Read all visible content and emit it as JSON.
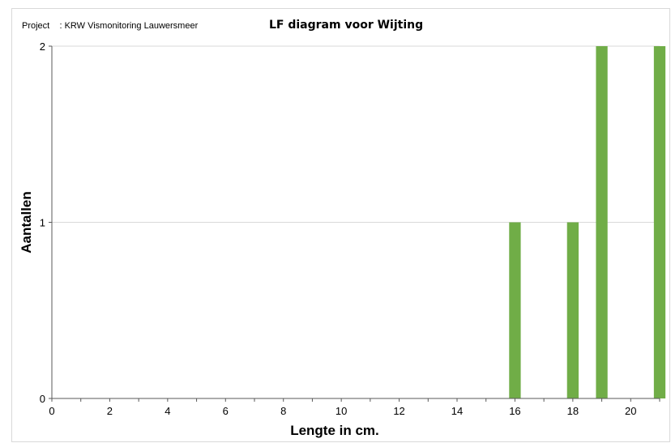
{
  "header": {
    "project": "Project    : KRW Vismonitoring Lauwersmeer",
    "title": "LF diagram voor Wijting"
  },
  "colors": {
    "bar": "#70ad47",
    "gridline": "#d9d9d9",
    "axis": "#595959"
  },
  "chart_data": {
    "type": "bar",
    "title": "LF diagram voor Wijting",
    "xlabel": "Lengte in cm.",
    "ylabel": "Aantallen",
    "xlim": [
      0,
      21
    ],
    "ylim": [
      0,
      2
    ],
    "xticks": [
      0,
      2,
      4,
      6,
      8,
      10,
      12,
      14,
      16,
      18,
      20
    ],
    "yticks": [
      0,
      1,
      2
    ],
    "grid": "horizontal",
    "points": [
      {
        "x": 16,
        "y": 1
      },
      {
        "x": 18,
        "y": 1
      },
      {
        "x": 19,
        "y": 2
      },
      {
        "x": 21,
        "y": 2
      }
    ]
  }
}
